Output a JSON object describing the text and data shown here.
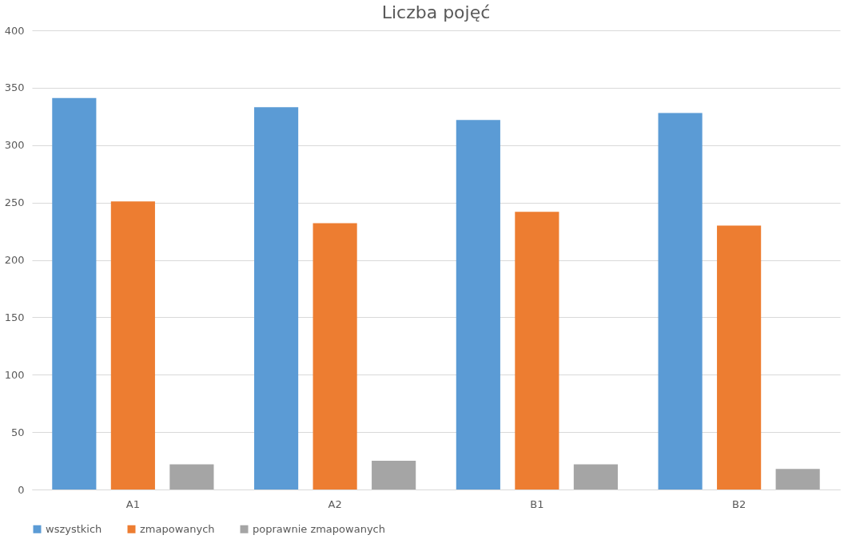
{
  "chart_data": {
    "type": "bar",
    "title": "Liczba pojęć",
    "categories": [
      "A1",
      "A2",
      "B1",
      "B2"
    ],
    "series": [
      {
        "name": "wszystkich",
        "color": "#5b9bd5",
        "values": [
          341,
          333,
          322,
          328
        ]
      },
      {
        "name": "zmapowanych",
        "color": "#ed7d31",
        "values": [
          251,
          232,
          242,
          230
        ]
      },
      {
        "name": "poprawnie zmapowanych",
        "color": "#a5a5a5",
        "values": [
          22,
          25,
          22,
          18
        ]
      }
    ],
    "ylim": [
      0,
      400
    ],
    "yticks": [
      0,
      50,
      100,
      150,
      200,
      250,
      300,
      350,
      400
    ],
    "grid": "y",
    "legend": "bottom"
  }
}
